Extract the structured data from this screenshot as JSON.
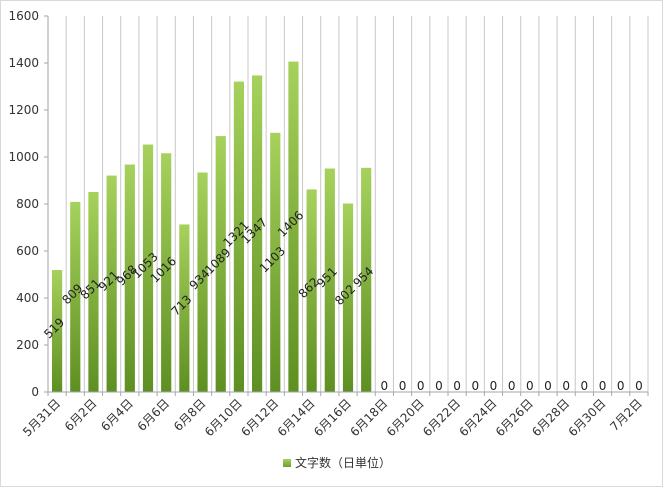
{
  "chart_data": {
    "type": "bar",
    "series": [
      {
        "name": "文字数（日単位）",
        "color": "#92c24a",
        "values": [
          519,
          809,
          851,
          921,
          968,
          1053,
          1016,
          713,
          934,
          1089,
          1321,
          1347,
          1103,
          1406,
          862,
          951,
          802,
          954,
          0,
          0,
          0,
          0,
          0,
          0,
          0,
          0,
          0,
          0,
          0,
          0,
          0,
          0,
          0
        ]
      }
    ],
    "categories": [
      "5月31日",
      "6月1日",
      "6月2日",
      "6月3日",
      "6月4日",
      "6月5日",
      "6月6日",
      "6月7日",
      "6月8日",
      "6月9日",
      "6月10日",
      "6月11日",
      "6月12日",
      "6月13日",
      "6月14日",
      "6月15日",
      "6月16日",
      "6月17日",
      "6月18日",
      "6月19日",
      "6月20日",
      "6月21日",
      "6月22日",
      "6月23日",
      "6月24日",
      "6月25日",
      "6月26日",
      "6月27日",
      "6月28日",
      "6月29日",
      "6月30日",
      "7月1日",
      "7月2日"
    ],
    "x_tick_labels": [
      "5月31日",
      "6月2日",
      "6月4日",
      "6月6日",
      "6月8日",
      "6月10日",
      "6月12日",
      "6月14日",
      "6月16日",
      "6月18日",
      "6月20日",
      "6月22日",
      "6月24日",
      "6月26日",
      "6月28日",
      "6月30日",
      "7月2日"
    ],
    "ylim": [
      0,
      1600
    ],
    "y_ticks": [
      0,
      200,
      400,
      600,
      800,
      1000,
      1200,
      1400,
      1600
    ],
    "grid": "vertical",
    "legend_position": "bottom",
    "title": "",
    "xlabel": "",
    "ylabel": ""
  }
}
